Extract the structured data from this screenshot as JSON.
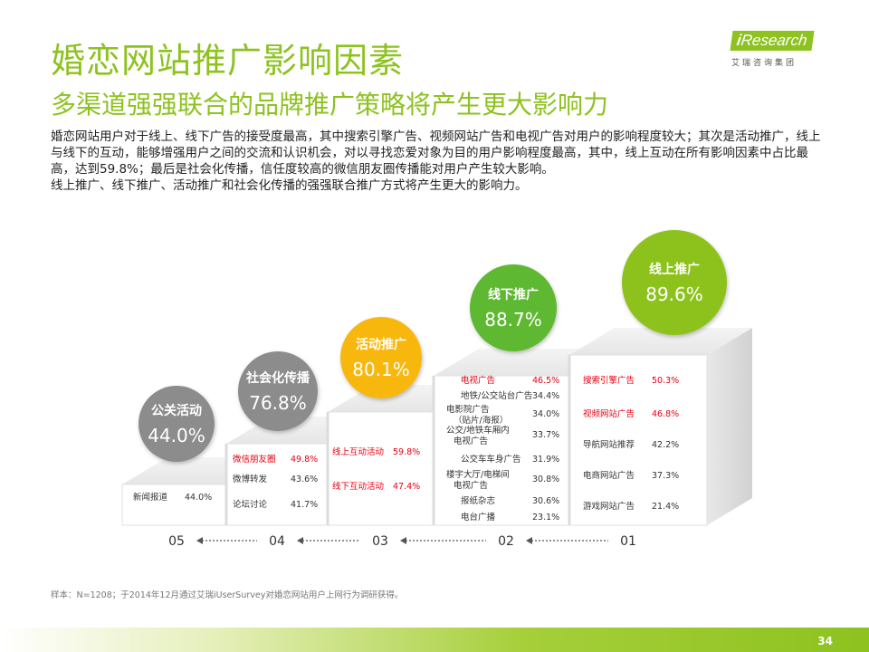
{
  "title": "婚恋网站推广影响因素",
  "subtitle": "多渠道强强联合的品牌推广策略将产生更大影响力",
  "logo": {
    "brand_i": "i",
    "brand_rest": "Research",
    "group": "艾瑞咨询集团"
  },
  "description": [
    "婚恋网站用户对于线上、线下广告的接受度最高，其中搜索引擎广告、视频网站广告和电视广告对用户的影响程度较大；其次是活动推广，线上与线下的互动，能够增强用户之间的交流和认识机会，对以寻找恋爱对象为目的用户影响程度最高，其中，线上互动在所有影响因素中占比最高，达到59.8%；最后是社会化传播，信任度较高的微信朋友圈传播能对用户产生较大影响。",
    "线上推广、线下推广、活动推广和社会化传播的强强联合推广方式将产生更大的影响力。"
  ],
  "steps": [
    {
      "num": "01",
      "title": "线上推广",
      "value": "89.6%",
      "color": "#8dc21f",
      "items": [
        {
          "label": "搜索引擎广告",
          "value": "50.3%",
          "highlight": true
        },
        {
          "label": "视频网站广告",
          "value": "46.8%",
          "highlight": true
        },
        {
          "label": "导航网站推荐",
          "value": "42.2%",
          "highlight": false
        },
        {
          "label": "电商网站广告",
          "value": "37.3%",
          "highlight": false
        },
        {
          "label": "游戏网站广告",
          "value": "21.4%",
          "highlight": false
        }
      ]
    },
    {
      "num": "02",
      "title": "线下推广",
      "value": "88.7%",
      "color": "#5fb830",
      "items": [
        {
          "label": "电视广告",
          "value": "46.5%",
          "highlight": true
        },
        {
          "label": "地铁/公交站台广告",
          "value": "34.4%",
          "highlight": false
        },
        {
          "label": "电影院广告（贴片/海报）",
          "value": "34.0%",
          "highlight": false
        },
        {
          "label": "公交/地铁车厢内电视广告",
          "value": "33.7%",
          "highlight": false
        },
        {
          "label": "公交车车身广告",
          "value": "31.9%",
          "highlight": false
        },
        {
          "label": "楼宇大厅/电梯间电视广告",
          "value": "30.8%",
          "highlight": false
        },
        {
          "label": "报纸杂志",
          "value": "30.6%",
          "highlight": false
        },
        {
          "label": "电台广播",
          "value": "23.1%",
          "highlight": false
        }
      ]
    },
    {
      "num": "03",
      "title": "活动推广",
      "value": "80.1%",
      "color": "#f8b70f",
      "items": [
        {
          "label": "线上互动活动",
          "value": "59.8%",
          "highlight": true
        },
        {
          "label": "线下互动活动",
          "value": "47.4%",
          "highlight": true
        }
      ]
    },
    {
      "num": "04",
      "title": "社会化传播",
      "value": "76.8%",
      "color": "#8c8c8c",
      "items": [
        {
          "label": "微信朋友圈",
          "value": "49.8%",
          "highlight": true
        },
        {
          "label": "微博转发",
          "value": "43.6%",
          "highlight": false
        },
        {
          "label": "论坛讨论",
          "value": "41.7%",
          "highlight": false
        }
      ]
    },
    {
      "num": "05",
      "title": "公关活动",
      "value": "44.0%",
      "color": "#8c8c8c",
      "items": [
        {
          "label": "新闻报道",
          "value": "44.0%",
          "highlight": false
        }
      ]
    }
  ],
  "footnote": "样本：N=1208；于2014年12月通过艾瑞iUserSurvey对婚恋网站用户上网行为调研获得。",
  "page_number": "34"
}
